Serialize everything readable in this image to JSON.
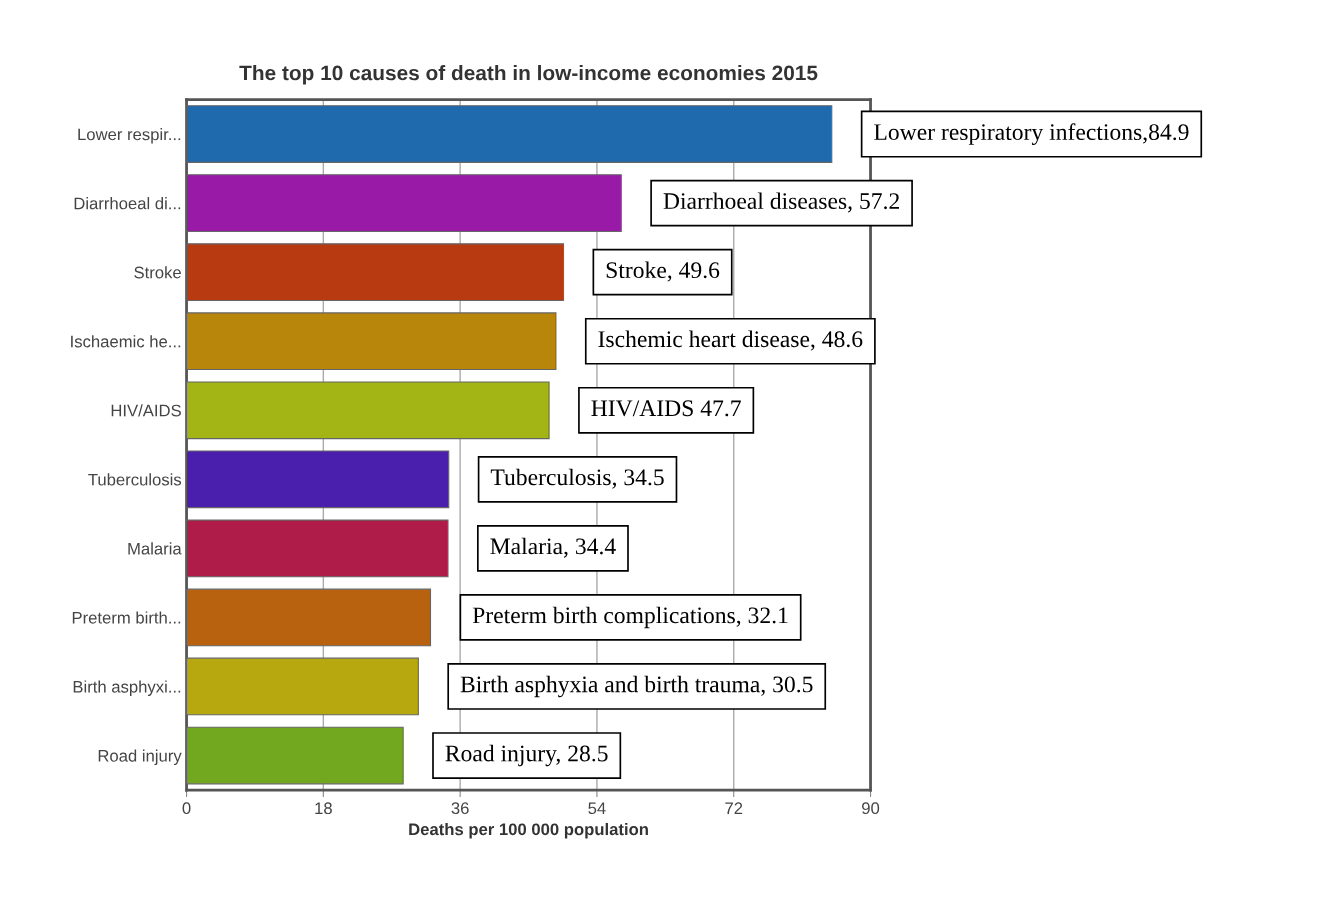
{
  "chart_data": {
    "type": "bar",
    "orientation": "horizontal",
    "title": "The top 10 causes of death in low-income economies 2015",
    "xlabel": "Deaths per 100 000 population",
    "categories": [
      "Lower respir...",
      "Diarrhoeal di...",
      "Stroke",
      "Ischaemic he...",
      "HIV/AIDS",
      "Tuberculosis",
      "Malaria",
      "Preterm birth...",
      "Birth asphyxi...",
      "Road injury"
    ],
    "values": [
      84.9,
      57.2,
      49.6,
      48.6,
      47.7,
      34.5,
      34.4,
      32.1,
      30.5,
      28.5
    ],
    "colors": [
      "#1f6aad",
      "#9a1aa8",
      "#b83a10",
      "#b8860b",
      "#a3b515",
      "#4b1fae",
      "#b01c4a",
      "#b8620f",
      "#b8a810",
      "#72a820"
    ],
    "value_labels": [
      "Lower respiratory infections,84.9",
      "Diarrhoeal diseases, 57.2",
      "Stroke, 49.6",
      "Ischemic heart disease, 48.6",
      "HIV/AIDS 47.7",
      "Tuberculosis, 34.5",
      "Malaria, 34.4",
      "Preterm birth complications, 32.1",
      "Birth asphyxia and birth trauma, 30.5",
      "Road injury, 28.5"
    ],
    "xlim": [
      0,
      90
    ],
    "xticks": [
      0,
      18,
      36,
      54,
      72,
      90
    ],
    "grid": "x"
  }
}
